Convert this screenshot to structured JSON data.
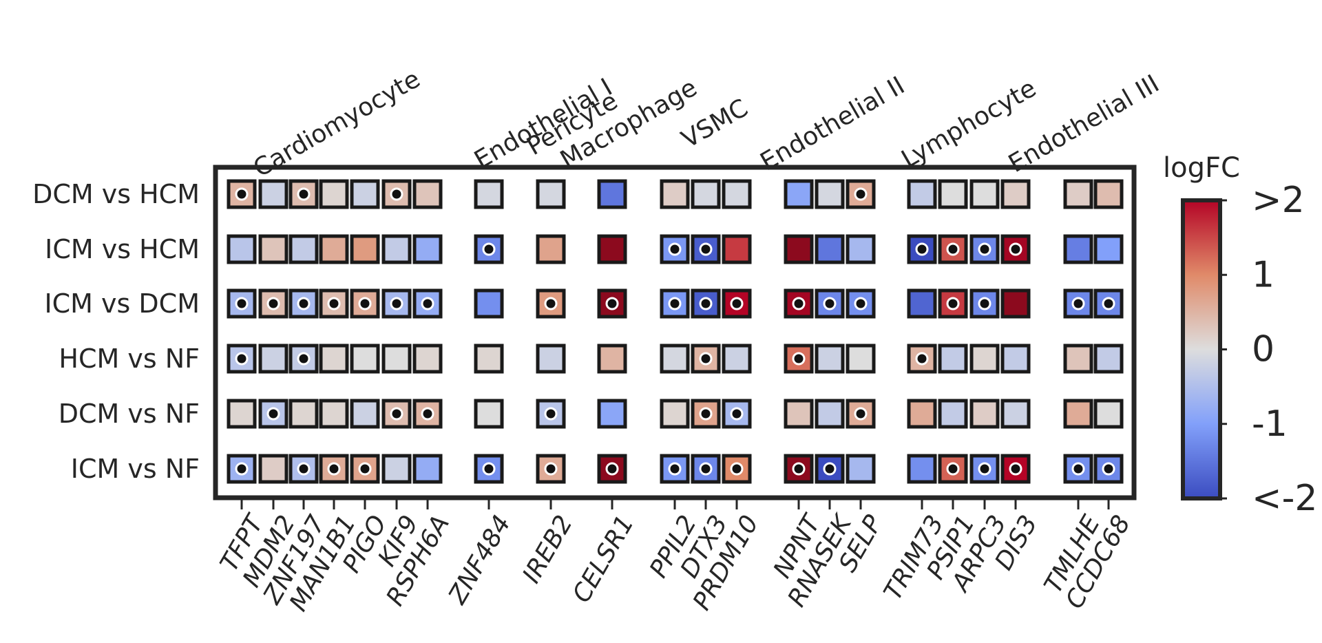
{
  "chart_data": {
    "type": "heatmap",
    "title": "",
    "rows": [
      "DCM vs HCM",
      "ICM vs HCM",
      "ICM vs DCM",
      "HCM vs NF",
      "DCM vs NF",
      "ICM vs NF"
    ],
    "groups": [
      {
        "name": "Cardiomyocyte",
        "genes": [
          "TFPT",
          "MDM2",
          "ZNF197",
          "MAN1B1",
          "PIGO",
          "KIF9",
          "RSPH6A"
        ]
      },
      {
        "name": "Endothelial I",
        "genes": [
          "ZNF484"
        ]
      },
      {
        "name": "Pericyte",
        "genes": [
          "IREB2"
        ]
      },
      {
        "name": "Macrophage",
        "genes": [
          "CELSR1"
        ]
      },
      {
        "name": "VSMC",
        "genes": [
          "PPIL2",
          "DTX3",
          "PRDM10"
        ]
      },
      {
        "name": "Endothelial II",
        "genes": [
          "NPNT",
          "RNASEK",
          "SELP"
        ]
      },
      {
        "name": "Lymphocyte",
        "genes": [
          "TRIM73",
          "PSIP1",
          "ARPC3",
          "DIS3"
        ]
      },
      {
        "name": "Endothelial III",
        "genes": [
          "TMLHE",
          "CCDC68"
        ]
      }
    ],
    "values": [
      [
        0.5,
        -0.2,
        0.4,
        0.1,
        -0.2,
        0.4,
        0.3,
        -0.1,
        -0.1,
        -1.5,
        0.2,
        -0.1,
        -0.1,
        -0.9,
        -0.1,
        0.6,
        -0.3,
        0.0,
        0.0,
        0.2,
        0.2,
        0.4
      ],
      [
        -0.4,
        0.3,
        -0.3,
        0.6,
        0.8,
        -0.3,
        -0.8,
        -1.3,
        0.7,
        2.5,
        -1.1,
        -1.8,
        1.6,
        2.5,
        -1.5,
        -0.6,
        -2.0,
        1.4,
        -1.3,
        2.2,
        -1.4,
        -1.0
      ],
      [
        -0.6,
        0.4,
        -0.6,
        0.4,
        0.6,
        -0.6,
        -0.8,
        -1.2,
        0.8,
        2.5,
        -1.1,
        -1.8,
        2.0,
        2.2,
        -1.3,
        -1.2,
        -1.7,
        1.6,
        -1.3,
        2.5,
        -1.3,
        -1.3
      ],
      [
        -0.4,
        -0.2,
        -0.3,
        0.1,
        0.0,
        0.0,
        0.1,
        0.1,
        -0.2,
        0.5,
        -0.1,
        0.5,
        -0.2,
        1.2,
        -0.2,
        0.0,
        0.5,
        -0.3,
        0.1,
        -0.3,
        0.3,
        -0.3
      ],
      [
        0.1,
        -0.4,
        0.1,
        0.1,
        -0.2,
        0.4,
        0.5,
        0.0,
        -0.4,
        -0.9,
        0.1,
        0.7,
        -0.6,
        0.3,
        -0.3,
        0.6,
        0.6,
        -0.3,
        0.2,
        -0.2,
        0.6,
        0.0
      ],
      [
        -0.7,
        0.2,
        -0.5,
        0.6,
        0.7,
        -0.2,
        -0.8,
        -1.2,
        0.6,
        2.5,
        -1.1,
        -1.3,
        1.0,
        2.5,
        -2.0,
        -0.6,
        -1.2,
        1.3,
        -1.2,
        2.0,
        -1.2,
        -1.3
      ]
    ],
    "significant": [
      [
        1,
        0,
        1,
        0,
        0,
        1,
        0,
        0,
        0,
        0,
        0,
        0,
        0,
        0,
        0,
        1,
        0,
        0,
        0,
        0,
        0,
        0
      ],
      [
        0,
        0,
        0,
        0,
        0,
        0,
        0,
        1,
        0,
        0,
        1,
        1,
        0,
        0,
        0,
        0,
        1,
        1,
        1,
        1,
        0,
        0
      ],
      [
        1,
        1,
        1,
        1,
        1,
        1,
        1,
        0,
        1,
        1,
        1,
        1,
        1,
        1,
        1,
        1,
        0,
        1,
        1,
        0,
        1,
        1
      ],
      [
        1,
        0,
        1,
        0,
        0,
        0,
        0,
        0,
        0,
        0,
        0,
        1,
        0,
        1,
        0,
        0,
        1,
        0,
        0,
        0,
        0,
        0
      ],
      [
        0,
        1,
        0,
        0,
        0,
        1,
        1,
        0,
        1,
        0,
        0,
        1,
        1,
        0,
        0,
        1,
        0,
        0,
        0,
        0,
        0,
        0
      ],
      [
        1,
        0,
        1,
        1,
        1,
        0,
        0,
        1,
        1,
        1,
        1,
        1,
        1,
        1,
        1,
        0,
        0,
        1,
        1,
        1,
        1,
        1
      ]
    ],
    "colorbar": {
      "label": "logFC",
      "ticks": [
        ">2",
        "1",
        "0",
        "-1",
        "<-2"
      ],
      "range": [
        -2,
        2
      ],
      "colors": {
        "low": "#3b4cc0",
        "mid": "#dddddd",
        "high": "#b40426",
        "extreme_high": "#8b0a1e"
      }
    },
    "grid": false,
    "legend": "right"
  }
}
